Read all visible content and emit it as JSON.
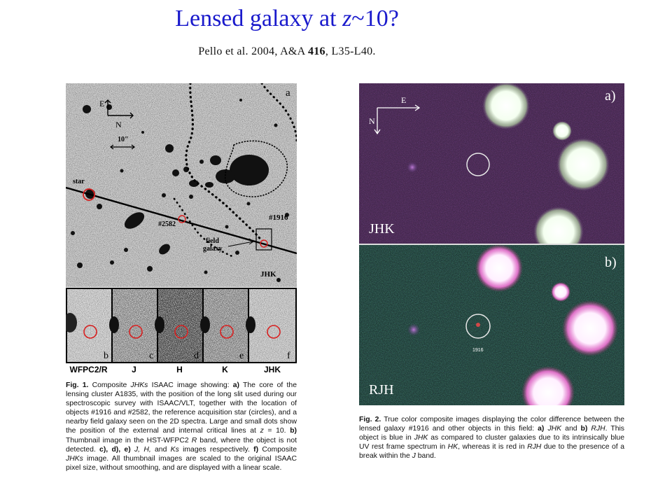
{
  "header": {
    "title_prefix": "Lensed galaxy at ",
    "title_var": "z",
    "title_suffix": "~10?",
    "citation_prefix": "Pello et al. 2004, A&A ",
    "citation_volume": "416",
    "citation_suffix": ", L35-L40."
  },
  "figure1": {
    "panel_label": "a",
    "compass_e": "E",
    "compass_n": "N",
    "scale_label": "10\"",
    "star_label": "star",
    "obj_2582": "#2582",
    "obj_1916": "#1916",
    "field_galaxy_line1": "field",
    "field_galaxy_line2": "galaxy",
    "band_label": "JHK",
    "thumbnails": [
      {
        "letter": "b",
        "band": "WFPC2/R"
      },
      {
        "letter": "c",
        "band": "J"
      },
      {
        "letter": "d",
        "band": "H"
      },
      {
        "letter": "e",
        "band": "K"
      },
      {
        "letter": "f",
        "band": "JHK"
      }
    ],
    "caption": {
      "label": "Fig. 1.",
      "t1": " Composite ",
      "i1": "JHKs",
      "t2": " ISAAC image showing: ",
      "b1": "a)",
      "t3": " The core of the lensing cluster A1835, with the position of the long slit used during our spectroscopic survey with ISAAC/VLT, together with the location of objects #1916 and #2582, the reference acquisition star (circles), and a nearby field galaxy seen on the 2D spectra. Large and small dots show the position of the external and internal critical lines at ",
      "i2": "z",
      "t4": " = 10. ",
      "b2": "b)",
      "t5": " Thumbnail image in the HST-WFPC2 ",
      "i3": "R",
      "t6": " band, where the object is not detected. ",
      "b3": "c), d), e)",
      "t7": " ",
      "i4": "J, H,",
      "t8": " and ",
      "i5": "Ks",
      "t9": " images respectively. ",
      "b4": "f)",
      "t10": " Composite ",
      "i6": "JHKs",
      "t11": " image. All thumbnail images are scaled to the original ISAAC pixel size, without smoothing, and are displayed with a linear scale."
    }
  },
  "figure2": {
    "panel_a_label": "a)",
    "panel_b_label": "b)",
    "compass_e": "E",
    "compass_n": "N",
    "band_a": "JHK",
    "band_b": "RJH",
    "obj_label": "1916",
    "caption": {
      "label": "Fig. 2.",
      "t1": " True color composite images displaying the color difference between the lensed galaxy #1916 and other objects in this field: ",
      "b1": "a)",
      "t2": " ",
      "i1": "JHK",
      "t3": " and ",
      "b2": "b)",
      "t4": " ",
      "i2": "RJH",
      "t5": ". This object is blue in ",
      "i3": "JHK",
      "t6": " as compared to cluster galaxies due to its intrinsically blue UV rest frame spectrum in ",
      "i4": "HK",
      "t7": ", whereas it is red in ",
      "i5": "RJH",
      "t8": " due to the presence of a break within the ",
      "i6": "J",
      "t9": " band."
    }
  }
}
